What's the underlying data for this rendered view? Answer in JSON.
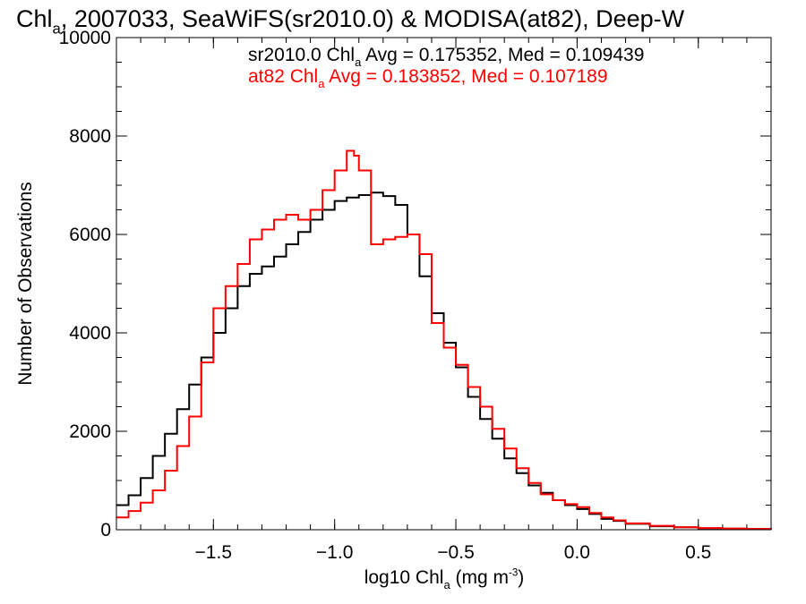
{
  "chart_data": {
    "type": "line",
    "step": true,
    "title_parts": [
      "Chl",
      "a",
      ", 2007033, SeaWiFS(sr2010.0) & MODISA(at82), Deep-W"
    ],
    "xlabel_parts": [
      "log10 Chl",
      "a",
      " (mg m",
      "-3",
      ")"
    ],
    "ylabel": "Number of Observations",
    "xlim": [
      -1.9,
      0.8
    ],
    "ylim": [
      0,
      10000
    ],
    "x_ticks": [
      -1.5,
      -1.0,
      -0.5,
      0.0,
      0.5
    ],
    "x_tick_labels": [
      "−1.5",
      "−1.0",
      "−0.5",
      "0.0",
      "0.5"
    ],
    "y_ticks": [
      0,
      2000,
      4000,
      6000,
      8000,
      10000
    ],
    "y_tick_labels": [
      "0",
      "2000",
      "4000",
      "6000",
      "8000",
      "10000"
    ],
    "series": [
      {
        "name_parts": [
          "sr2010.0 Chl",
          "a",
          " Avg = 0.175352, Med = 0.109439"
        ],
        "color": "#000000",
        "x": [
          -1.9,
          -1.85,
          -1.8,
          -1.75,
          -1.7,
          -1.65,
          -1.6,
          -1.55,
          -1.5,
          -1.45,
          -1.4,
          -1.35,
          -1.3,
          -1.25,
          -1.2,
          -1.15,
          -1.1,
          -1.05,
          -1.0,
          -0.95,
          -0.9,
          -0.85,
          -0.8,
          -0.75,
          -0.7,
          -0.65,
          -0.6,
          -0.55,
          -0.5,
          -0.45,
          -0.4,
          -0.35,
          -0.3,
          -0.25,
          -0.2,
          -0.15,
          -0.1,
          -0.05,
          0.0,
          0.05,
          0.1,
          0.15,
          0.2,
          0.3,
          0.4,
          0.5,
          0.6,
          0.7,
          0.8
        ],
        "y": [
          500,
          700,
          1050,
          1500,
          1950,
          2450,
          2950,
          3500,
          4000,
          4500,
          4950,
          5200,
          5350,
          5550,
          5800,
          6050,
          6300,
          6500,
          6680,
          6750,
          6800,
          6850,
          6780,
          6600,
          6000,
          5150,
          4400,
          3800,
          3300,
          2700,
          2250,
          1850,
          1450,
          1150,
          900,
          750,
          600,
          500,
          420,
          320,
          220,
          180,
          120,
          70,
          50,
          30,
          20,
          15,
          10
        ]
      },
      {
        "name_parts": [
          "at82 Chl",
          "a",
          " Avg = 0.183852, Med = 0.107189"
        ],
        "color": "#ff0000",
        "x": [
          -1.9,
          -1.85,
          -1.8,
          -1.75,
          -1.7,
          -1.65,
          -1.6,
          -1.55,
          -1.5,
          -1.45,
          -1.4,
          -1.35,
          -1.3,
          -1.25,
          -1.2,
          -1.15,
          -1.1,
          -1.05,
          -1.0,
          -0.95,
          -0.92,
          -0.9,
          -0.85,
          -0.8,
          -0.75,
          -0.7,
          -0.65,
          -0.6,
          -0.55,
          -0.5,
          -0.45,
          -0.4,
          -0.35,
          -0.3,
          -0.25,
          -0.2,
          -0.15,
          -0.1,
          -0.05,
          0.0,
          0.05,
          0.1,
          0.15,
          0.2,
          0.3,
          0.4,
          0.5,
          0.6,
          0.7,
          0.8
        ],
        "y": [
          250,
          380,
          550,
          800,
          1200,
          1700,
          2300,
          3400,
          4500,
          4950,
          5400,
          5900,
          6100,
          6300,
          6400,
          6300,
          6500,
          6900,
          7300,
          7700,
          7600,
          7300,
          5800,
          5900,
          5950,
          6000,
          5600,
          4200,
          3700,
          3350,
          2900,
          2500,
          2050,
          1650,
          1250,
          950,
          720,
          600,
          520,
          460,
          340,
          250,
          190,
          130,
          80,
          50,
          35,
          25,
          15,
          10
        ]
      }
    ]
  }
}
